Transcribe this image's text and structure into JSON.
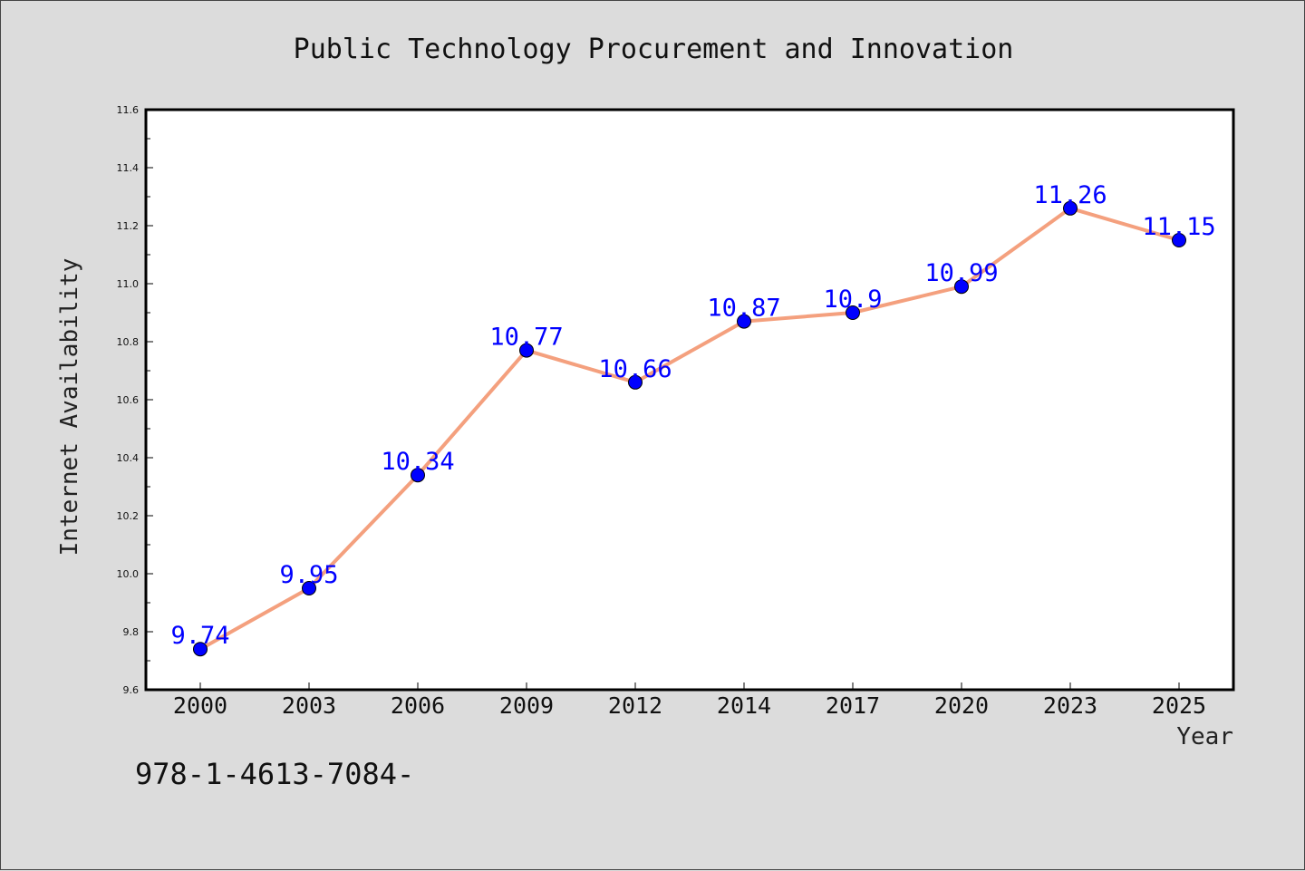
{
  "chart_data": {
    "type": "line",
    "title": "Public Technology Procurement and Innovation",
    "xlabel": "Year",
    "ylabel": "Internet Availability",
    "categories": [
      "2000",
      "2003",
      "2006",
      "2009",
      "2012",
      "2014",
      "2017",
      "2020",
      "2023",
      "2025"
    ],
    "series": [
      {
        "values": [
          9.74,
          9.95,
          10.34,
          10.77,
          10.66,
          10.87,
          10.9,
          10.99,
          11.26,
          11.15
        ]
      }
    ],
    "data_labels": [
      "9.74",
      "9.95",
      "10.34",
      "10.77",
      "10.66",
      "10.87",
      "10.9",
      "10.99",
      "11.26",
      "11.15"
    ],
    "ylim": [
      9.6,
      11.6
    ],
    "yticks": [
      "9.6",
      "9.8",
      "10.0",
      "10.2",
      "10.4",
      "10.6",
      "10.8",
      "11.0",
      "11.2",
      "11.4",
      "11.6"
    ],
    "grid": false,
    "colors": {
      "line": "#f4a07e",
      "marker": "#0000ff",
      "marker_edge": "#000000",
      "data_label": "#0000ff",
      "plot_background": "#ffffff",
      "figure_background": "#dcdcdc"
    }
  },
  "footer_text": "978-1-4613-7084-"
}
